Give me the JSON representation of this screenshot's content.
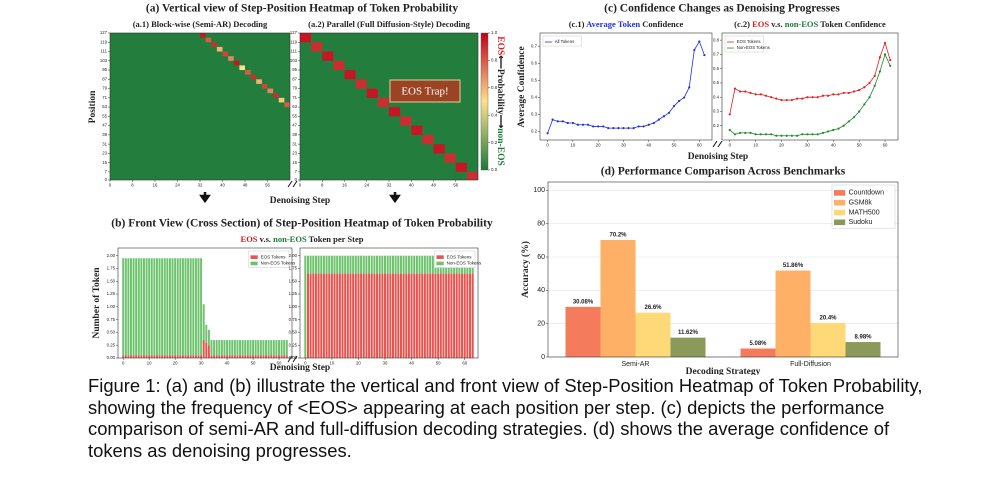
{
  "headings": {
    "a": "(a) Vertical view of Step-Position Heatmap of Token Probability",
    "b": "(b) Front View (Cross Section) of Step-Position Heatmap of Token Probability",
    "b_subtitle": [
      "EOS",
      "v.s.",
      "non-EOS",
      "Token per Step"
    ],
    "c": "(c) Confidence Changes as Denoising Progresses",
    "c1_title": [
      "(c.1)",
      "Average Token",
      "Confidence"
    ],
    "c2_title": [
      "(c.2)",
      "EOS",
      "v.s.",
      "non-EOS",
      "Token Confidence"
    ]
  },
  "axis_labels": {
    "a_x": "Denoising Step",
    "a_y": "Position",
    "b_x": "Denoising Step",
    "b_y": "Number of Token",
    "c_x": "Denoising Step",
    "c_y": "Average Confidence"
  },
  "colorbar": {
    "ticks": [
      {
        "value": 0,
        "label": "0.0"
      },
      0.2,
      0.4,
      0.6,
      0.8,
      {
        "value": 1,
        "label": "1.0"
      }
    ],
    "label": [
      "EOS",
      "⟵Probability⟶",
      "non-EOS"
    ]
  },
  "chart_data": [
    {
      "type": "heatmap",
      "title": "(a.1) Block-wise (Semi-AR) Decoding",
      "x": [
        32,
        34,
        36,
        38,
        40,
        42,
        44,
        46,
        48,
        50,
        52,
        54,
        56,
        58,
        60,
        62
      ],
      "y": [
        127,
        123,
        119,
        115,
        111,
        107,
        103,
        99,
        95,
        91,
        87,
        83,
        79,
        75,
        71,
        67
      ],
      "values": [
        0.95,
        0.8,
        0.9,
        0.6,
        0.85,
        0.7,
        0.95,
        0.5,
        0.8,
        0.9,
        0.6,
        0.85,
        0.7,
        0.9,
        0.55,
        0.8
      ],
      "xlim": [
        0,
        64
      ],
      "ylim": [
        0,
        127
      ],
      "xticks": [
        0,
        8,
        16,
        24,
        32,
        40,
        48,
        56
      ],
      "yticks": [
        0,
        7,
        15,
        23,
        31,
        39,
        47,
        55,
        63,
        71,
        79,
        87,
        95,
        103,
        111,
        119,
        127
      ]
    },
    {
      "type": "heatmap",
      "title": "(a.2) Parallel (Full Diffusion-Style) Decoding",
      "annotation": "EOS Trap!",
      "x": [
        0,
        4,
        8,
        12,
        16,
        20,
        24,
        28,
        32,
        36,
        40,
        44,
        48,
        52,
        56,
        60
      ],
      "y": [
        127,
        119,
        111,
        103,
        95,
        87,
        79,
        71,
        63,
        55,
        47,
        39,
        31,
        23,
        15,
        7
      ],
      "values": [
        0.95,
        0.9,
        0.95,
        0.9,
        0.95,
        0.9,
        0.95,
        0.9,
        0.95,
        0.9,
        0.95,
        0.9,
        0.95,
        0.9,
        0.95,
        0.9
      ],
      "xlim": [
        0,
        64
      ],
      "ylim": [
        0,
        127
      ],
      "xticks": [
        0,
        8,
        16,
        24,
        32,
        40,
        48,
        56
      ],
      "yticks": [
        0,
        7,
        15,
        23,
        31,
        39,
        47,
        55,
        63,
        71,
        79,
        87,
        95,
        103,
        111,
        119,
        127
      ]
    },
    {
      "type": "stacked_bar",
      "x": [
        0,
        1,
        2,
        3,
        4,
        5,
        6,
        7,
        8,
        9,
        10,
        11,
        12,
        13,
        14,
        15,
        16,
        17,
        18,
        19,
        20,
        21,
        22,
        23,
        24,
        25,
        26,
        27,
        28,
        29,
        30,
        31,
        32,
        33,
        34,
        35,
        36,
        37,
        38,
        39,
        40,
        41,
        42,
        43,
        44,
        45,
        46,
        47,
        48,
        49,
        50,
        51,
        52,
        53,
        54,
        55,
        56,
        57,
        58,
        59,
        60,
        61,
        62,
        63
      ],
      "series": [
        {
          "name": "EOS Tokens",
          "color": "#e8534f",
          "values": [
            0.05,
            0.05,
            0.05,
            0.05,
            0.05,
            0.05,
            0.05,
            0.05,
            0.05,
            0.05,
            0.05,
            0.05,
            0.05,
            0.05,
            0.05,
            0.05,
            0.05,
            0.05,
            0.05,
            0.05,
            0.05,
            0.05,
            0.05,
            0.05,
            0.05,
            0.05,
            0.05,
            0.05,
            0.05,
            0.05,
            0.05,
            0.35,
            0.3,
            0.25,
            0.05,
            0.05,
            0.05,
            0.05,
            0.05,
            0.05,
            0.05,
            0.05,
            0.05,
            0.05,
            0.05,
            0.05,
            0.05,
            0.05,
            0.05,
            0.05,
            0.05,
            0.05,
            0.05,
            0.05,
            0.05,
            0.05,
            0.05,
            0.05,
            0.05,
            0.05,
            0.05,
            0.05,
            0.05,
            0.05
          ]
        },
        {
          "name": "Non-EOS Tokens",
          "color": "#6cc36c",
          "values": [
            1.9,
            1.9,
            1.9,
            1.9,
            1.9,
            1.9,
            1.9,
            1.9,
            1.9,
            1.9,
            1.9,
            1.9,
            1.9,
            1.9,
            1.9,
            1.9,
            1.9,
            1.9,
            1.9,
            1.9,
            1.9,
            1.9,
            1.9,
            1.9,
            1.9,
            1.9,
            1.9,
            1.9,
            1.9,
            1.9,
            1.9,
            0.7,
            0.35,
            0.3,
            0.3,
            0.3,
            0.3,
            0.3,
            0.3,
            0.3,
            0.3,
            0.3,
            0.3,
            0.3,
            0.3,
            0.3,
            0.3,
            0.3,
            0.3,
            0.3,
            0.3,
            0.3,
            0.3,
            0.3,
            0.3,
            0.3,
            0.3,
            0.3,
            0.3,
            0.3,
            0.3,
            0.3,
            0.3,
            0.3
          ]
        }
      ],
      "xlim": [
        -2,
        65
      ],
      "ylim": [
        0,
        2.15
      ],
      "xticks": [
        0,
        10,
        20,
        30,
        40,
        50,
        60
      ],
      "yticks": [
        {
          "value": 0,
          "label": "0.00"
        },
        0.25,
        {
          "value": 0.5,
          "label": "0.50"
        },
        0.75,
        {
          "value": 1,
          "label": "1.00"
        },
        1.25,
        {
          "value": 1.5,
          "label": "1.50"
        },
        1.75,
        {
          "value": 2,
          "label": "2.00"
        }
      ],
      "legend": "upper right"
    },
    {
      "type": "stacked_bar",
      "x": [
        0,
        1,
        2,
        3,
        4,
        5,
        6,
        7,
        8,
        9,
        10,
        11,
        12,
        13,
        14,
        15,
        16,
        17,
        18,
        19,
        20,
        21,
        22,
        23,
        24,
        25,
        26,
        27,
        28,
        29,
        30,
        31,
        32,
        33,
        34,
        35,
        36,
        37,
        38,
        39,
        40,
        41,
        42,
        43,
        44,
        45,
        46,
        47,
        48,
        49,
        50,
        51,
        52,
        53,
        54,
        55,
        56,
        57,
        58,
        59,
        60,
        61,
        62,
        63
      ],
      "series": [
        {
          "name": "EOS Tokens",
          "color": "#e8534f",
          "values": [
            0,
            1.65,
            1.65,
            1.65,
            1.65,
            1.65,
            1.65,
            1.65,
            1.65,
            1.65,
            1.65,
            1.65,
            1.65,
            1.65,
            1.65,
            1.65,
            1.65,
            1.65,
            1.65,
            1.65,
            1.65,
            1.65,
            1.65,
            1.65,
            1.65,
            1.65,
            1.65,
            1.65,
            1.65,
            1.65,
            1.65,
            1.65,
            1.65,
            1.65,
            1.65,
            1.65,
            1.65,
            1.65,
            1.65,
            1.65,
            1.65,
            1.65,
            1.65,
            1.65,
            1.65,
            1.65,
            1.65,
            1.65,
            1.65,
            1.65,
            1.65,
            1.65,
            1.65,
            1.65,
            1.65,
            1.65,
            1.65,
            1.65,
            1.65,
            1.65,
            1.65,
            1.65,
            1.65,
            1.65
          ]
        },
        {
          "name": "Non-EOS Tokens",
          "color": "#6cc36c",
          "values": [
            2.0,
            0.35,
            0.35,
            0.35,
            0.35,
            0.35,
            0.35,
            0.35,
            0.35,
            0.35,
            0.35,
            0.35,
            0.35,
            0.35,
            0.35,
            0.35,
            0.35,
            0.35,
            0.35,
            0.35,
            0.35,
            0.35,
            0.35,
            0.35,
            0.35,
            0.35,
            0.35,
            0.35,
            0.35,
            0.35,
            0.35,
            0.35,
            0.35,
            0.35,
            0.35,
            0.35,
            0.35,
            0.35,
            0.35,
            0.35,
            0.35,
            0.35,
            0.35,
            0.35,
            0.35,
            0.35,
            0.35,
            0.35,
            0.35,
            0.35,
            0.35,
            0.35,
            0.35,
            0.35,
            0.35,
            0.35,
            0.35,
            0.35,
            0.35,
            0.35,
            0.35,
            0.35,
            0.35,
            0.35
          ]
        }
      ],
      "xlim": [
        -2,
        65
      ],
      "ylim": [
        0,
        2.15
      ],
      "xticks": [
        0,
        10,
        20,
        30,
        40,
        50,
        60
      ],
      "yticks": [
        {
          "value": 0,
          "label": "0.00"
        },
        0.25,
        {
          "value": 0.5,
          "label": "0.50"
        },
        0.75,
        {
          "value": 1,
          "label": "1.00"
        },
        1.25,
        {
          "value": 1.5,
          "label": "1.50"
        },
        1.75,
        {
          "value": 2,
          "label": "2.00"
        }
      ],
      "legend": "upper right"
    },
    {
      "type": "line",
      "x": [
        0,
        2,
        4,
        6,
        8,
        10,
        12,
        14,
        16,
        18,
        20,
        22,
        24,
        26,
        28,
        30,
        32,
        34,
        36,
        38,
        40,
        42,
        44,
        46,
        48,
        50,
        52,
        54,
        56,
        58,
        60,
        62
      ],
      "series": [
        {
          "name": "All Tokens",
          "color": "#2030e0",
          "values": [
            0.19,
            0.27,
            0.26,
            0.26,
            0.25,
            0.25,
            0.24,
            0.24,
            0.24,
            0.23,
            0.23,
            0.23,
            0.22,
            0.22,
            0.22,
            0.22,
            0.22,
            0.22,
            0.23,
            0.23,
            0.24,
            0.25,
            0.27,
            0.29,
            0.31,
            0.35,
            0.38,
            0.4,
            0.46,
            0.68,
            0.73,
            0.65
          ]
        }
      ],
      "xlim": [
        -3,
        65
      ],
      "ylim": [
        0.15,
        0.78
      ],
      "xticks": [
        0,
        10,
        20,
        30,
        40,
        50,
        60
      ],
      "yticks": [
        0.2,
        0.3,
        0.4,
        0.5,
        0.6,
        0.7
      ],
      "legend": "upper left"
    },
    {
      "type": "line",
      "x": [
        0,
        2,
        4,
        6,
        8,
        10,
        12,
        14,
        16,
        18,
        20,
        22,
        24,
        26,
        28,
        30,
        32,
        34,
        36,
        38,
        40,
        42,
        44,
        46,
        48,
        50,
        52,
        54,
        56,
        58,
        60,
        62
      ],
      "series": [
        {
          "name": "EOS Tokens",
          "color": "#e02020",
          "values": [
            0.28,
            0.46,
            0.44,
            0.44,
            0.43,
            0.42,
            0.42,
            0.41,
            0.4,
            0.39,
            0.38,
            0.38,
            0.38,
            0.39,
            0.39,
            0.4,
            0.4,
            0.4,
            0.41,
            0.41,
            0.42,
            0.42,
            0.43,
            0.43,
            0.44,
            0.45,
            0.47,
            0.5,
            0.55,
            0.68,
            0.78,
            0.66
          ]
        },
        {
          "name": "Non-EOS Tokens",
          "color": "#1e8a2a",
          "values": [
            0.17,
            0.14,
            0.15,
            0.15,
            0.15,
            0.14,
            0.14,
            0.14,
            0.14,
            0.13,
            0.13,
            0.13,
            0.13,
            0.13,
            0.14,
            0.14,
            0.14,
            0.14,
            0.15,
            0.16,
            0.17,
            0.18,
            0.2,
            0.23,
            0.26,
            0.3,
            0.35,
            0.4,
            0.48,
            0.58,
            0.7,
            0.62
          ]
        }
      ],
      "xlim": [
        -3,
        65
      ],
      "ylim": [
        0.1,
        0.85
      ],
      "xticks": [
        0,
        10,
        20,
        30,
        40,
        50,
        60
      ],
      "yticks": [
        0.2,
        0.3,
        0.4,
        0.5,
        0.6,
        0.7,
        0.8
      ],
      "legend": "upper left"
    },
    {
      "type": "grouped_bar",
      "title": "(d) Performance Comparison Across Benchmarks",
      "xlabel": "Decoding Strategy",
      "ylabel": "Accuracy (%)",
      "categories": [
        "Semi-AR",
        "Full-Diffusion"
      ],
      "series": [
        {
          "name": "Countdown",
          "color": "#f47b5b",
          "values": [
            30.08,
            5.08
          ],
          "value_labels": [
            "30.08%",
            "5.08%"
          ]
        },
        {
          "name": "GSM8k",
          "color": "#ffb067",
          "values": [
            70.2,
            51.86
          ],
          "value_labels": [
            "70.2%",
            "51.86%"
          ]
        },
        {
          "name": "MATH500",
          "color": "#ffd878",
          "values": [
            26.6,
            20.4
          ],
          "value_labels": [
            "26.6%",
            "20.4%"
          ]
        },
        {
          "name": "Sudoku",
          "color": "#8b9a5b",
          "values": [
            11.62,
            8.98
          ],
          "value_labels": [
            "11.62%",
            "8.98%"
          ]
        }
      ],
      "ylim": [
        0,
        105
      ],
      "yticks": [
        0,
        20,
        40,
        60,
        80,
        100
      ],
      "grid": true,
      "legend": "upper right"
    }
  ],
  "caption": "Figure 1: (a) and (b) illustrate the vertical and front view of Step-Position Heatmap of Token Probability, showing the frequency of <EOS> appearing at each position per step. (c) depicts the performance comparison of semi-AR and full-diffusion decoding strategies. (d) shows the average confidence of tokens as denoising progresses."
}
